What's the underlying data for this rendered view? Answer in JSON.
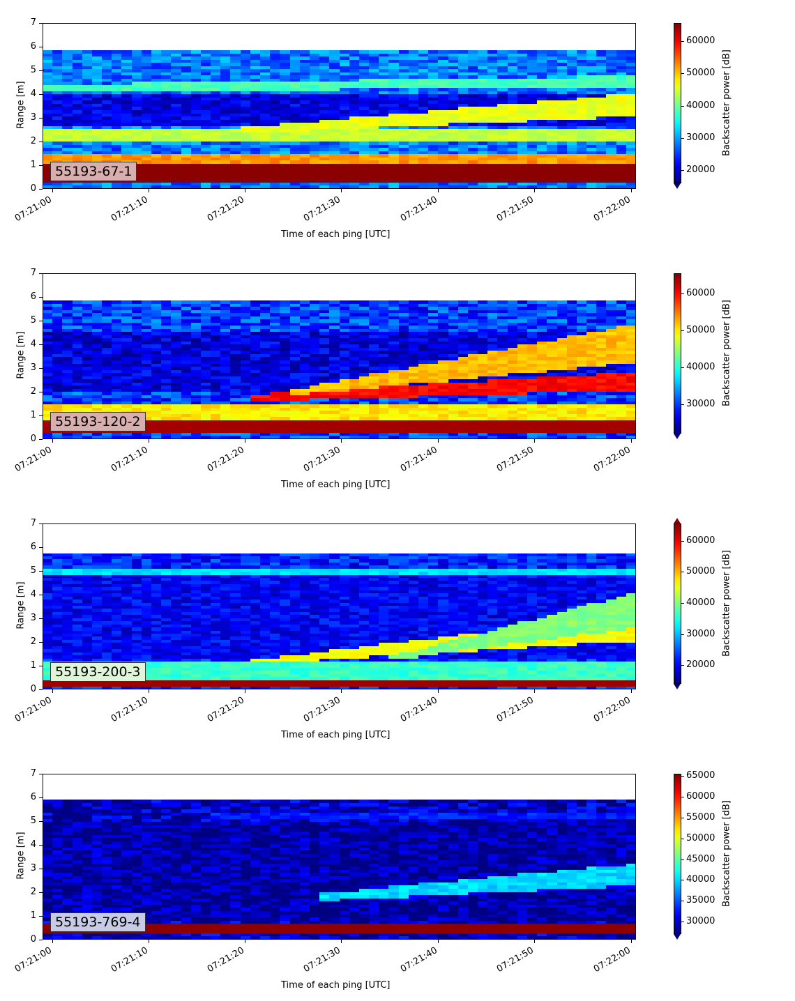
{
  "chart_data": [
    {
      "type": "heatmap",
      "label": "55193-67-1",
      "label_bg": "#d9aeae",
      "xlabel": "Time of each ping [UTC]",
      "ylabel": "Range [m]",
      "x_ticks": [
        "07:21:00",
        "07:21:10",
        "07:21:20",
        "07:21:30",
        "07:21:40",
        "07:21:50",
        "07:22:00"
      ],
      "y_ticks": [
        0,
        1,
        2,
        3,
        4,
        5,
        6,
        7
      ],
      "ylim": [
        0,
        7
      ],
      "data_range_max": 5.85,
      "colorbar": {
        "label": "Backscatter power [dB]",
        "ticks": [
          20000,
          30000,
          40000,
          50000,
          60000
        ],
        "vmin": 16000,
        "vmax": 65535,
        "extend": "min"
      },
      "features": {
        "base": 28000,
        "bottom_band": {
          "from": 0.2,
          "to": 1.1,
          "value": 65000
        },
        "near_band": {
          "from": 1.1,
          "to": 1.4,
          "value": 52000
        },
        "layers": [
          {
            "from": 2.0,
            "to": 2.5,
            "x0": 0,
            "x1": 60,
            "value": 44000
          },
          {
            "from": 4.1,
            "to": 4.4,
            "x0": 0,
            "x1": 60,
            "slope": 0.003,
            "value": 38000
          },
          {
            "from": 2.35,
            "to": 2.6,
            "x0": 20,
            "x1": 60,
            "slope": 0.018,
            "value": 46000
          }
        ],
        "dark_band": {
          "from": 2.6,
          "to": 4.0,
          "value": 21000
        }
      }
    },
    {
      "type": "heatmap",
      "label": "55193-120-2",
      "label_bg": "#d9aeae",
      "xlabel": "Time of each ping [UTC]",
      "ylabel": "Range [m]",
      "x_ticks": [
        "07:21:00",
        "07:21:10",
        "07:21:20",
        "07:21:30",
        "07:21:40",
        "07:21:50",
        "07:22:00"
      ],
      "y_ticks": [
        0,
        1,
        2,
        3,
        4,
        5,
        6,
        7
      ],
      "ylim": [
        0,
        7
      ],
      "data_range_max": 5.85,
      "colorbar": {
        "label": "Backscatter power [dB]",
        "ticks": [
          30000,
          40000,
          50000,
          60000
        ],
        "vmin": 22000,
        "vmax": 65535,
        "extend": "min"
      },
      "features": {
        "base": 30000,
        "bottom_band": {
          "from": 0.2,
          "to": 0.85,
          "value": 64000
        },
        "near_band": {
          "from": 0.85,
          "to": 1.5,
          "value": 50000
        },
        "layers": [
          {
            "from": 1.6,
            "to": 1.9,
            "x0": 21,
            "x1": 60,
            "slope": 0.012,
            "value": 60000
          },
          {
            "from": 1.85,
            "to": 2.1,
            "x0": 25,
            "x1": 60,
            "slope": 0.04,
            "value": 52000
          }
        ],
        "dark_band": {
          "from": 2.0,
          "to": 4.5,
          "value": 26000
        }
      }
    },
    {
      "type": "heatmap",
      "label": "55193-200-3",
      "label_bg": "#dff5d8",
      "xlabel": "Time of each ping [UTC]",
      "ylabel": "Range [m]",
      "x_ticks": [
        "07:21:00",
        "07:21:10",
        "07:21:20",
        "07:21:30",
        "07:21:40",
        "07:21:50",
        "07:22:00"
      ],
      "y_ticks": [
        0,
        1,
        2,
        3,
        4,
        5,
        6,
        7
      ],
      "ylim": [
        0,
        7
      ],
      "data_range_max": 5.75,
      "colorbar": {
        "label": "Backscatter power [dB]",
        "ticks": [
          20000,
          30000,
          40000,
          50000,
          60000
        ],
        "vmin": 14000,
        "vmax": 65535,
        "extend": "both"
      },
      "features": {
        "base": 22000,
        "bottom_band": {
          "from": 0.15,
          "to": 0.35,
          "value": 64000
        },
        "near_band": {
          "from": 0.35,
          "to": 1.2,
          "value": 36000
        },
        "layers": [
          {
            "from": 4.9,
            "to": 5.05,
            "x0": 0,
            "x1": 60,
            "value": 32000
          },
          {
            "from": 1.05,
            "to": 1.2,
            "x0": 20,
            "x1": 60,
            "slope": 0.025,
            "value": 46000
          },
          {
            "from": 1.25,
            "to": 1.4,
            "x0": 35,
            "x1": 60,
            "slope": 0.055,
            "value": 40000
          }
        ],
        "dark_band": {
          "from": 1.3,
          "to": 4.8,
          "value": 20000
        }
      }
    },
    {
      "type": "heatmap",
      "label": "55193-769-4",
      "label_bg": "#c7cbe6",
      "xlabel": "Time of each ping [UTC]",
      "ylabel": "Range [m]",
      "x_ticks": [
        "07:21:00",
        "07:21:10",
        "07:21:20",
        "07:21:30",
        "07:21:40",
        "07:21:50",
        "07:22:00"
      ],
      "y_ticks": [
        0,
        1,
        2,
        3,
        4,
        5,
        6,
        7
      ],
      "ylim": [
        0,
        7
      ],
      "data_range_max": 5.9,
      "colorbar": {
        "label": "Backscatter power [dB]",
        "ticks": [
          30000,
          35000,
          40000,
          45000,
          50000,
          55000,
          60000,
          65000
        ],
        "vmin": 27000,
        "vmax": 65535,
        "extend": "min"
      },
      "features": {
        "base": 29000,
        "bottom_band": {
          "from": 0.25,
          "to": 0.65,
          "value": 65000
        },
        "near_band": {
          "from": 0.65,
          "to": 0.72,
          "value": 40000
        },
        "layers": [
          {
            "from": 1.65,
            "to": 1.95,
            "x0": 28,
            "x1": 60,
            "slope": 0.02,
            "value": 40000
          },
          {
            "from": 5.1,
            "to": 5.3,
            "x0": 17,
            "x1": 60,
            "value": 33000
          }
        ],
        "dark_band": {
          "from": 0.8,
          "to": 5.0,
          "value": 28500
        }
      }
    }
  ]
}
